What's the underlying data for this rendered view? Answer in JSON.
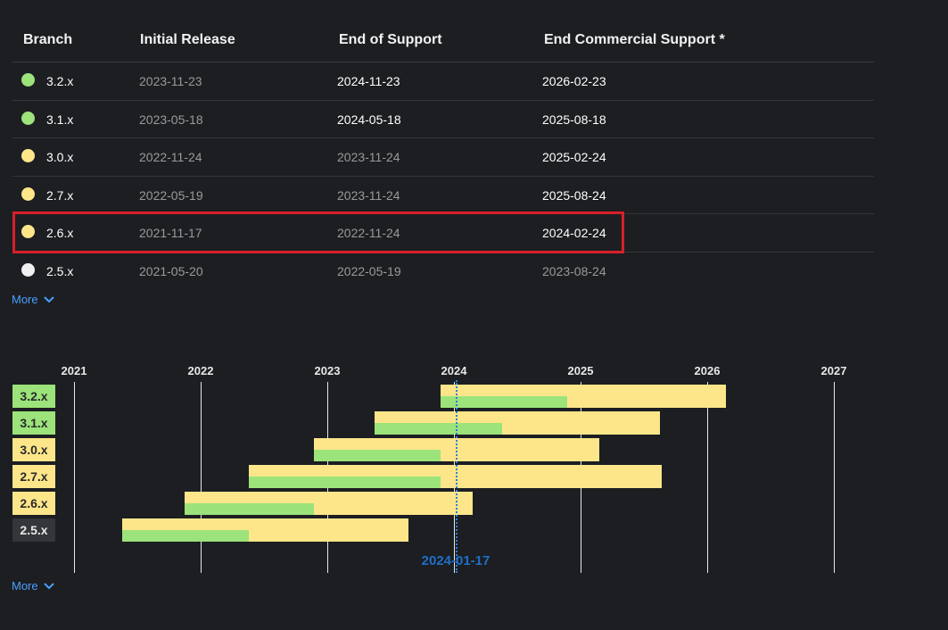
{
  "table": {
    "headers": [
      "Branch",
      "Initial Release",
      "End of Support",
      "End Commercial Support *"
    ],
    "rows": [
      {
        "branch": "3.2.x",
        "initial": "2023-11-23",
        "eos": "2024-11-23",
        "ecs": "2026-02-23",
        "status_color": "#9be37a"
      },
      {
        "branch": "3.1.x",
        "initial": "2023-05-18",
        "eos": "2024-05-18",
        "ecs": "2025-08-18",
        "status_color": "#9be37a"
      },
      {
        "branch": "3.0.x",
        "initial": "2022-11-24",
        "eos": "2023-11-24",
        "ecs": "2025-02-24",
        "status_color": "#fde68a"
      },
      {
        "branch": "2.7.x",
        "initial": "2022-05-19",
        "eos": "2023-11-24",
        "ecs": "2025-08-24",
        "status_color": "#fde68a"
      },
      {
        "branch": "2.6.x",
        "initial": "2021-11-17",
        "eos": "2022-11-24",
        "ecs": "2024-02-24",
        "status_color": "#fde68a"
      },
      {
        "branch": "2.5.x",
        "initial": "2021-05-20",
        "eos": "2022-05-19",
        "ecs": "2023-08-24",
        "status_color": "#f0f0f0"
      }
    ],
    "more_label": "More"
  },
  "timeline": {
    "years": [
      "2021",
      "2022",
      "2023",
      "2024",
      "2025",
      "2026",
      "2027"
    ],
    "today_label": "2024-01-17",
    "more_label": "More",
    "label_colors": {
      "3.2.x": "#9be37a",
      "3.1.x": "#9be37a",
      "3.0.x": "#fde68a",
      "2.7.x": "#fde68a",
      "2.6.x": "#fde68a",
      "2.5.x": "#34363a"
    },
    "bar_colors": {
      "support": "#9be37a",
      "commercial": "#fde68a"
    }
  }
}
